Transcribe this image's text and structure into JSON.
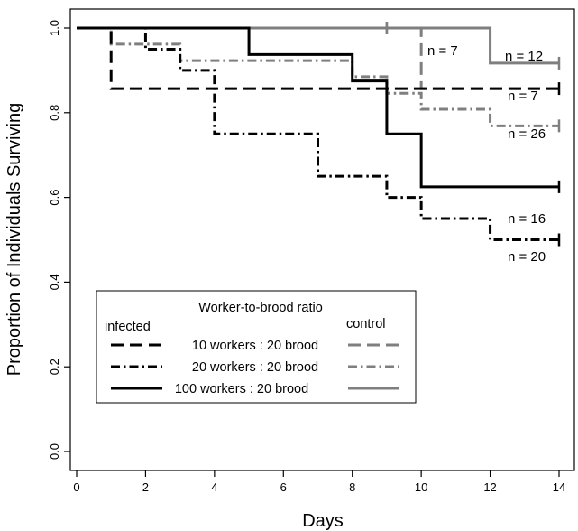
{
  "chart_data": {
    "type": "line",
    "subtype": "kaplan-meier step",
    "xlabel": "Days",
    "ylabel": "Proportion of Individuals Surviving",
    "xlim": [
      0,
      14
    ],
    "ylim": [
      0,
      1
    ],
    "xticks": [
      "0",
      "2",
      "4",
      "6",
      "8",
      "10",
      "12",
      "14"
    ],
    "yticks": [
      "0.0",
      "0.2",
      "0.4",
      "0.6",
      "0.8",
      "1.0"
    ],
    "grid": false,
    "series": [
      {
        "name": "10 workers : 20 brood",
        "group": "infected",
        "color": "#000000",
        "dash": "dashed",
        "steps": [
          [
            0,
            1.0
          ],
          [
            1,
            0.857
          ],
          [
            14,
            0.857
          ]
        ],
        "censored": [
          [
            14,
            0.857
          ]
        ],
        "n_label": "n = 7"
      },
      {
        "name": "20 workers : 20 brood",
        "group": "infected",
        "color": "#000000",
        "dash": "dashdot",
        "steps": [
          [
            0,
            1.0
          ],
          [
            2,
            0.95
          ],
          [
            3,
            0.9
          ],
          [
            4,
            0.75
          ],
          [
            7,
            0.65
          ],
          [
            9,
            0.6
          ],
          [
            10,
            0.55
          ],
          [
            12,
            0.5
          ],
          [
            14,
            0.5
          ]
        ],
        "censored": [
          [
            14,
            0.5
          ]
        ],
        "n_label": "n = 20"
      },
      {
        "name": "100 workers : 20 brood",
        "group": "infected",
        "color": "#000000",
        "dash": "solid",
        "steps": [
          [
            0,
            1.0
          ],
          [
            5,
            0.9375
          ],
          [
            8,
            0.875
          ],
          [
            9,
            0.75
          ],
          [
            10,
            0.625
          ],
          [
            14,
            0.625
          ]
        ],
        "censored": [
          [
            14,
            0.625
          ]
        ],
        "n_label": "n = 16"
      },
      {
        "name": "10 workers : 20 brood",
        "group": "control",
        "color": "#7f7f7f",
        "dash": "dashed",
        "steps": [
          [
            0,
            1.0
          ],
          [
            10,
            0.857
          ],
          [
            14,
            0.857
          ]
        ],
        "censored": [
          [
            9,
            1.0
          ]
        ],
        "n_label": "n = 7"
      },
      {
        "name": "20 workers : 20 brood",
        "group": "control",
        "color": "#7f7f7f",
        "dash": "dashdot",
        "steps": [
          [
            0,
            1.0
          ],
          [
            1,
            0.962
          ],
          [
            3,
            0.923
          ],
          [
            8,
            0.885
          ],
          [
            9,
            0.846
          ],
          [
            10,
            0.808
          ],
          [
            12,
            0.769
          ],
          [
            14,
            0.769
          ]
        ],
        "censored": [
          [
            14,
            0.769
          ]
        ],
        "n_label": "n = 26"
      },
      {
        "name": "100 workers : 20 brood",
        "group": "control",
        "color": "#7f7f7f",
        "dash": "solid",
        "steps": [
          [
            0,
            1.0
          ],
          [
            12,
            0.917
          ],
          [
            14,
            0.917
          ]
        ],
        "censored": [
          [
            9,
            1.0
          ],
          [
            14,
            0.917
          ]
        ],
        "n_label": "n = 12"
      }
    ],
    "legend": {
      "title": "Worker-to-brood ratio",
      "left_header": "infected",
      "right_header": "control",
      "rows": [
        "10 workers : 20 brood",
        "20 workers : 20 brood",
        "100 workers : 20 brood"
      ],
      "placement": "lower-left"
    }
  }
}
